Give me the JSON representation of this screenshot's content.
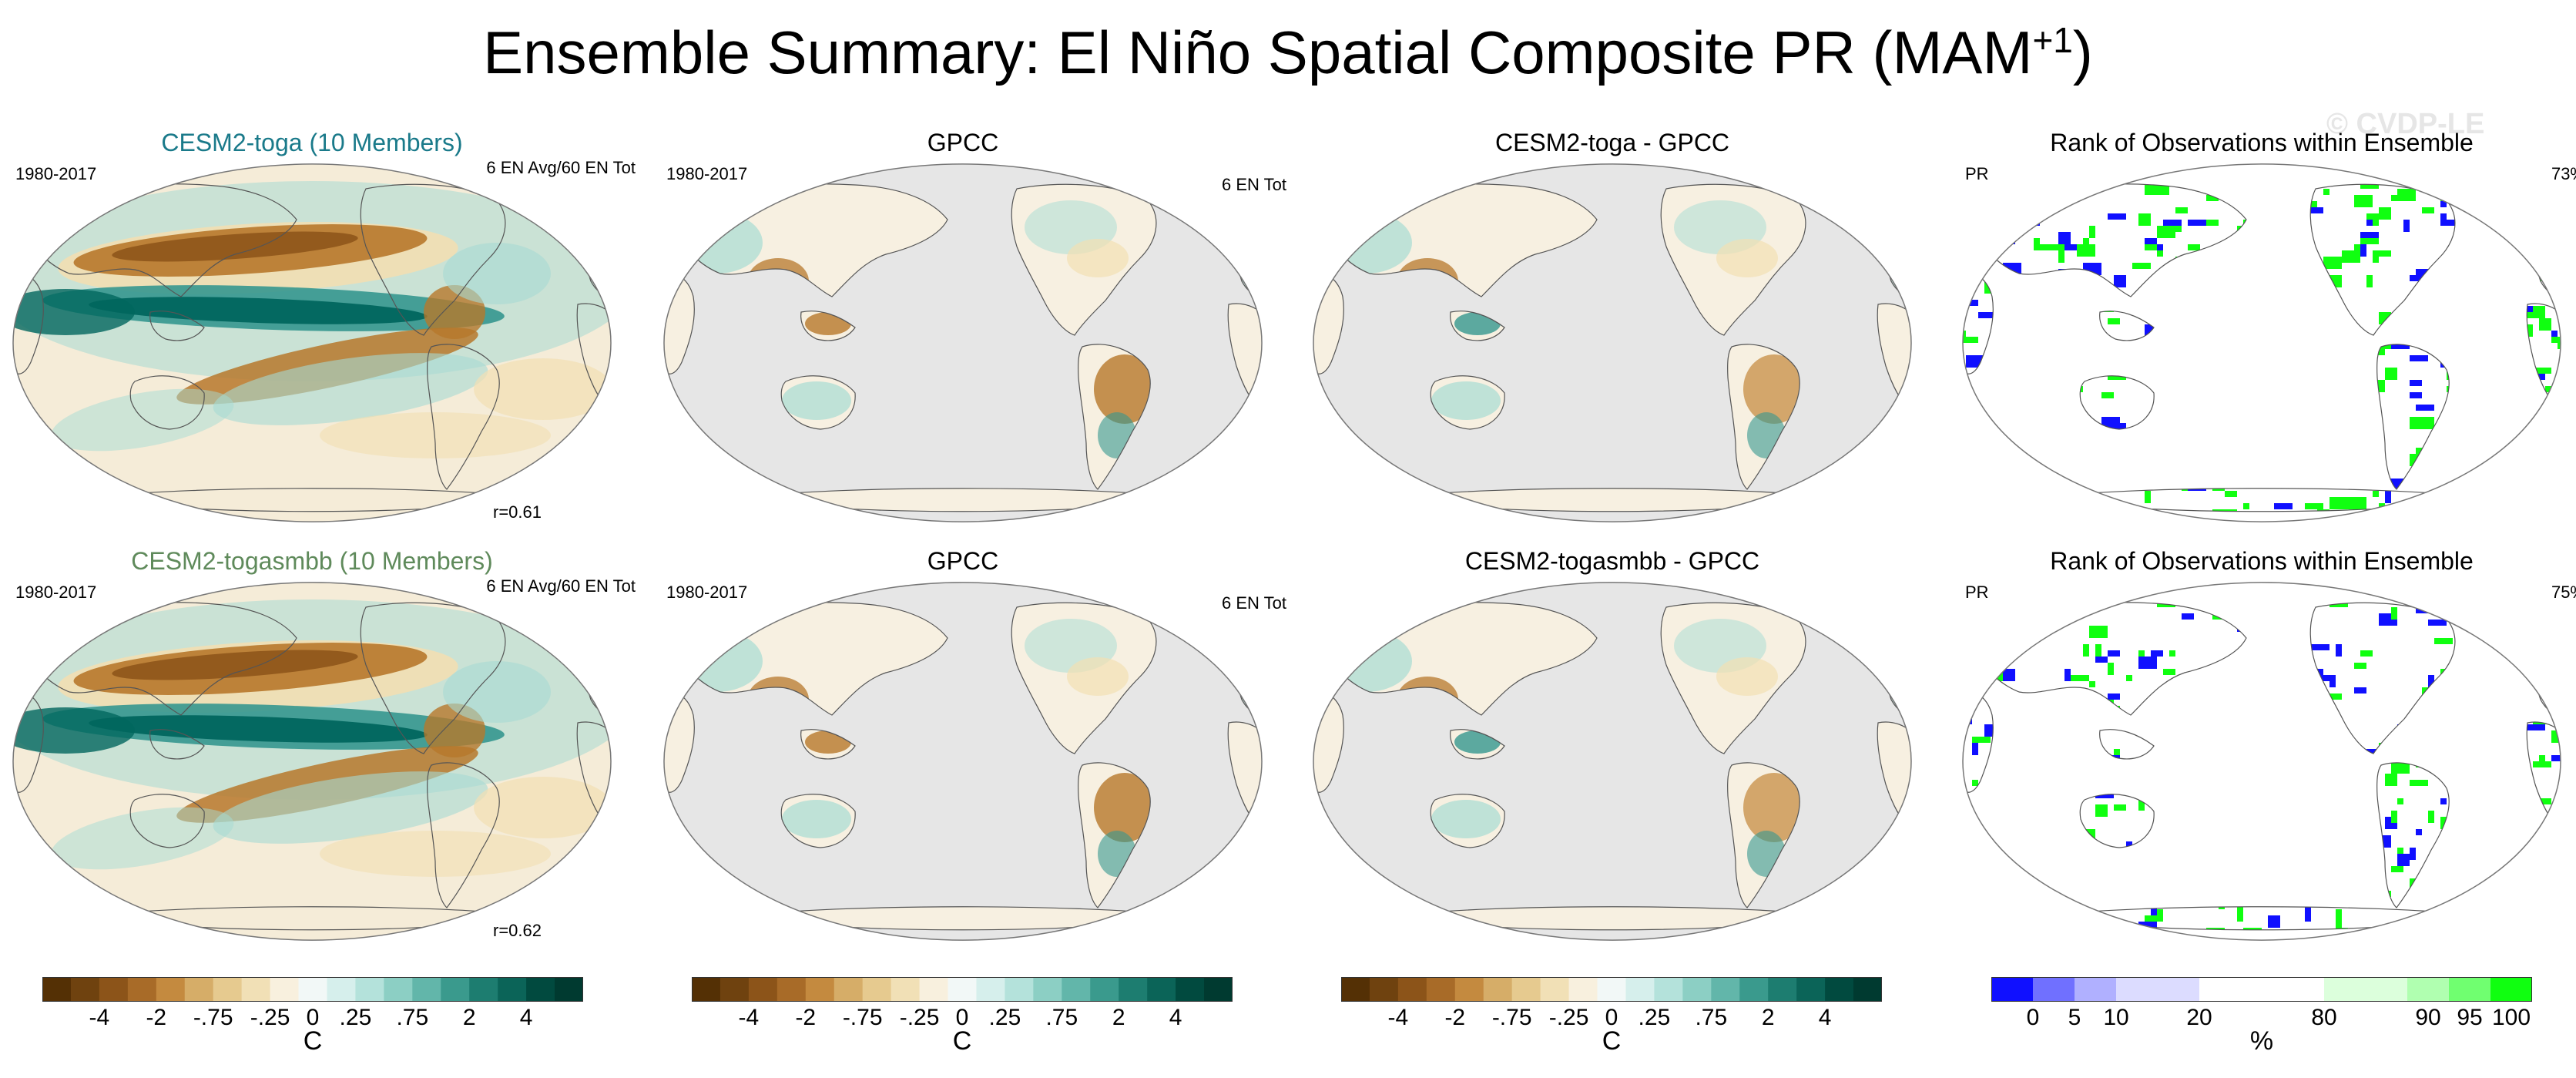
{
  "figure": {
    "title_main": "Ensemble Summary: El Niño Spatial Composite PR (MAM",
    "title_sup": "+1",
    "title_close": ")",
    "watermark": "© CVDP-LE"
  },
  "panels": [
    {
      "id": "p1",
      "title": "CESM2-toga (10 Members)",
      "left": "1980-2017",
      "right": "6 EN Avg/60 EN Tot",
      "corr": "r=0.61",
      "type": "model"
    },
    {
      "id": "p2",
      "title": "GPCC",
      "left": "1980-2017",
      "right": "6 EN Tot",
      "type": "obs"
    },
    {
      "id": "p3",
      "title": "CESM2-toga - GPCC",
      "type": "diff"
    },
    {
      "id": "p4",
      "title": "Rank of Observations within Ensemble",
      "left": "PR",
      "right": "73%",
      "type": "rank"
    },
    {
      "id": "p5",
      "title": "CESM2-togasmbb (10 Members)",
      "left": "1980-2017",
      "right": "6 EN Avg/60 EN Tot",
      "corr": "r=0.62",
      "type": "model"
    },
    {
      "id": "p6",
      "title": "GPCC",
      "left": "1980-2017",
      "right": "6 EN Tot",
      "type": "obs"
    },
    {
      "id": "p7",
      "title": "CESM2-togasmbb - GPCC",
      "type": "diff"
    },
    {
      "id": "p8",
      "title": "Rank of Observations within Ensemble",
      "left": "PR",
      "right": "75%",
      "type": "rank"
    }
  ],
  "colorbars": {
    "anomaly": {
      "colors": [
        "#543005",
        "#6f420f",
        "#8c5419",
        "#a86b28",
        "#c48a3f",
        "#d6ad68",
        "#e6ca8f",
        "#f1e0b6",
        "#f8f0de",
        "#f2f8f7",
        "#d6efec",
        "#b4e2db",
        "#8ccfc4",
        "#62b6aa",
        "#3a9a8d",
        "#1d7d70",
        "#0b6458",
        "#014a3f",
        "#003a30"
      ],
      "labels": [
        "-4",
        "-2",
        "-.75",
        "-.25",
        "0",
        ".25",
        ".75",
        "2",
        "4"
      ],
      "unit": "C"
    },
    "rank": {
      "colors": [
        "#1010ff",
        "#7070ff",
        "#b0b0ff",
        "#dcdcff",
        "#dcdcff",
        "#ffffff",
        "#ffffff",
        "#ffffff",
        "#dcffdc",
        "#dcffdc",
        "#b0ffb0",
        "#70ff70",
        "#10ff10"
      ],
      "labels": [
        "0",
        "5",
        "10",
        "20",
        "80",
        "90",
        "95",
        "100"
      ],
      "unit": "%"
    }
  },
  "chart_data": {
    "type": "heatmap",
    "title": "Ensemble Summary: El Niño Spatial Composite PR (MAM+1)",
    "panels": [
      {
        "title": "CESM2-toga (10 Members)",
        "period": "1980-2017",
        "events": "6 EN Avg/60 EN Tot",
        "pattern_correlation": 0.61,
        "units": "C"
      },
      {
        "title": "GPCC",
        "period": "1980-2017",
        "events": "6 EN Tot",
        "units": "C"
      },
      {
        "title": "CESM2-toga - GPCC",
        "units": "C"
      },
      {
        "title": "Rank of Observations within Ensemble",
        "variable": "PR",
        "percent": 73,
        "units": "%"
      },
      {
        "title": "CESM2-togasmbb (10 Members)",
        "period": "1980-2017",
        "events": "6 EN Avg/60 EN Tot",
        "pattern_correlation": 0.62,
        "units": "C"
      },
      {
        "title": "GPCC",
        "period": "1980-2017",
        "events": "6 EN Tot",
        "units": "C"
      },
      {
        "title": "CESM2-togasmbb - GPCC",
        "units": "C"
      },
      {
        "title": "Rank of Observations within Ensemble",
        "variable": "PR",
        "percent": 75,
        "units": "%"
      }
    ],
    "anomaly_levels": [
      -4,
      -2,
      -0.75,
      -0.25,
      0,
      0.25,
      0.75,
      2,
      4
    ],
    "rank_levels": [
      0,
      5,
      10,
      20,
      80,
      90,
      95,
      100
    ]
  }
}
